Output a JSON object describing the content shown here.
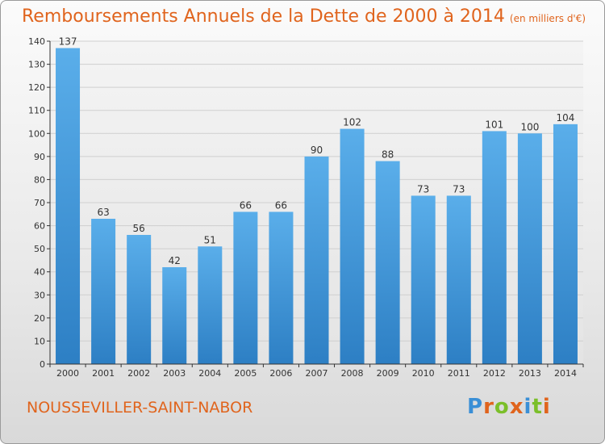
{
  "title": "Remboursements Annuels de la Dette de 2000 à 2014",
  "title_unit": "(en milliers d'€)",
  "commune": "NOUSSEVILLER-SAINT-NABOR",
  "logo": {
    "text": "Proxiti",
    "letters": [
      {
        "ch": "P",
        "color": "#3a8fd6"
      },
      {
        "ch": "r",
        "color": "#e0641d"
      },
      {
        "ch": "o",
        "color": "#7bbf2a"
      },
      {
        "ch": "x",
        "color": "#e0641d"
      },
      {
        "ch": "i",
        "color": "#3a8fd6"
      },
      {
        "ch": "t",
        "color": "#7bbf2a"
      },
      {
        "ch": "i",
        "color": "#e0641d"
      }
    ]
  },
  "colors": {
    "title": "#e0641d",
    "bar_top": "#5aaeea",
    "bar_bottom": "#2d7fc4",
    "grid": "#cfcfcf",
    "axis": "#333333"
  },
  "chart_data": {
    "type": "bar",
    "title": "Remboursements Annuels de la Dette de 2000 à 2014",
    "xlabel": "",
    "ylabel": "",
    "categories": [
      "2000",
      "2001",
      "2002",
      "2003",
      "2004",
      "2005",
      "2006",
      "2007",
      "2008",
      "2009",
      "2010",
      "2011",
      "2012",
      "2013",
      "2014"
    ],
    "values": [
      137,
      63,
      56,
      42,
      51,
      66,
      66,
      90,
      102,
      88,
      73,
      73,
      101,
      100,
      104
    ],
    "ylim": [
      0,
      140
    ],
    "yticks": [
      0,
      10,
      20,
      30,
      40,
      50,
      60,
      70,
      80,
      90,
      100,
      110,
      120,
      130,
      140
    ],
    "grid": true,
    "legend": "none"
  }
}
